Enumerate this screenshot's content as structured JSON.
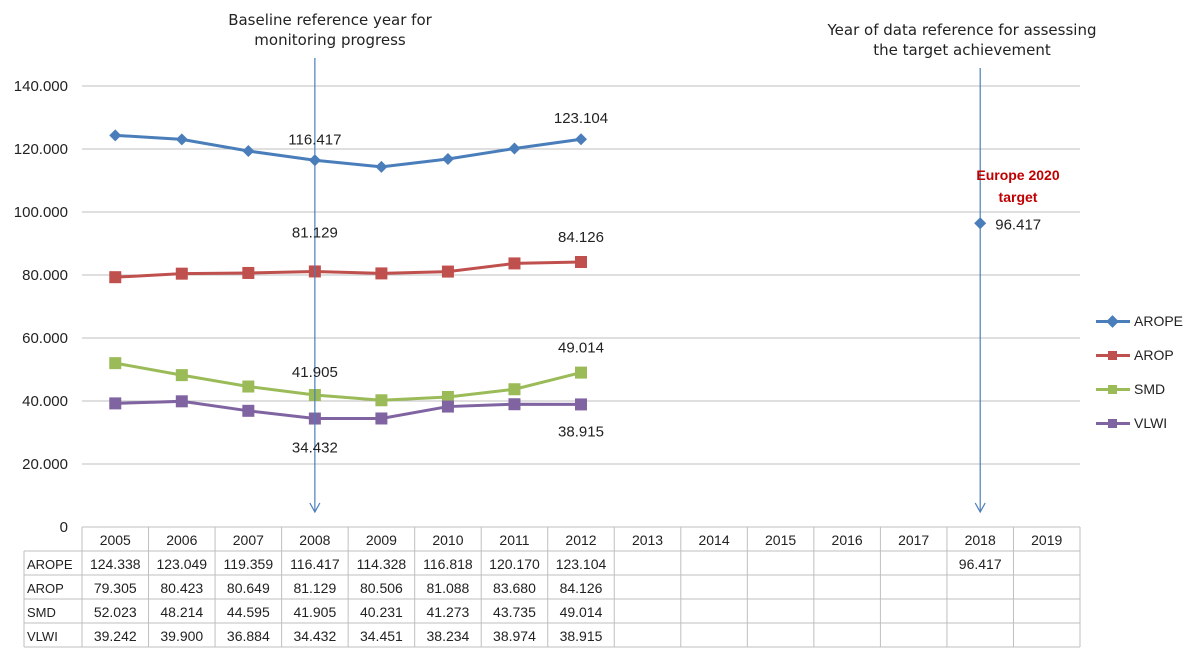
{
  "annotations": {
    "baseline": "Baseline reference year for monitoring progress",
    "data_year": "Year of data reference for assessing the target achievement",
    "target_label": "Europe 2020 target"
  },
  "chart_data": {
    "type": "line",
    "categories": [
      "2005",
      "2006",
      "2007",
      "2008",
      "2009",
      "2010",
      "2011",
      "2012",
      "2013",
      "2014",
      "2015",
      "2016",
      "2017",
      "2018",
      "2019"
    ],
    "ylim": [
      0,
      140
    ],
    "y_ticks": [
      "0",
      "20.000",
      "40.000",
      "60.000",
      "80.000",
      "100.000",
      "120.000",
      "140.000"
    ],
    "grid": true,
    "legend_position": "right",
    "series": [
      {
        "name": "AROPE",
        "color": "#4a7ebb",
        "marker": "diamond",
        "values": [
          124.338,
          123.049,
          119.359,
          116.417,
          114.328,
          116.818,
          120.17,
          123.104,
          null,
          null,
          null,
          null,
          null,
          96.417,
          null
        ],
        "labels": [
          "124.338",
          "123.049",
          "119.359",
          "116.417",
          "114.328",
          "116.818",
          "120.170",
          "123.104",
          "",
          "",
          "",
          "",
          "",
          "96.417",
          ""
        ]
      },
      {
        "name": "AROP",
        "color": "#c0504d",
        "marker": "square",
        "values": [
          79.305,
          80.423,
          80.649,
          81.129,
          80.506,
          81.088,
          83.68,
          84.126,
          null,
          null,
          null,
          null,
          null,
          null,
          null
        ],
        "labels": [
          "79.305",
          "80.423",
          "80.649",
          "81.129",
          "80.506",
          "81.088",
          "83.680",
          "84.126",
          "",
          "",
          "",
          "",
          "",
          "",
          ""
        ]
      },
      {
        "name": "SMD",
        "color": "#9bbb59",
        "marker": "square",
        "values": [
          52.023,
          48.214,
          44.595,
          41.905,
          40.231,
          41.273,
          43.735,
          49.014,
          null,
          null,
          null,
          null,
          null,
          null,
          null
        ],
        "labels": [
          "52.023",
          "48.214",
          "44.595",
          "41.905",
          "40.231",
          "41.273",
          "43.735",
          "49.014",
          "",
          "",
          "",
          "",
          "",
          "",
          ""
        ]
      },
      {
        "name": "VLWI",
        "color": "#8064a2",
        "marker": "square",
        "values": [
          39.242,
          39.9,
          36.884,
          34.432,
          34.451,
          38.234,
          38.974,
          38.915,
          null,
          null,
          null,
          null,
          null,
          null,
          null
        ],
        "labels": [
          "39.242",
          "39.900",
          "36.884",
          "34.432",
          "34.451",
          "38.234",
          "38.974",
          "38.915",
          "",
          "",
          "",
          "",
          "",
          "",
          ""
        ]
      }
    ],
    "data_labels": [
      {
        "series": 0,
        "index": 3,
        "text": "116.417"
      },
      {
        "series": 0,
        "index": 7,
        "text": "123.104"
      },
      {
        "series": 0,
        "index": 13,
        "text": "96.417"
      },
      {
        "series": 1,
        "index": 3,
        "text": "81.129"
      },
      {
        "series": 1,
        "index": 7,
        "text": "84.126"
      },
      {
        "series": 2,
        "index": 3,
        "text": "41.905"
      },
      {
        "series": 2,
        "index": 7,
        "text": "49.014"
      },
      {
        "series": 3,
        "index": 3,
        "text": "34.432"
      },
      {
        "series": 3,
        "index": 7,
        "text": "38.915"
      }
    ]
  }
}
